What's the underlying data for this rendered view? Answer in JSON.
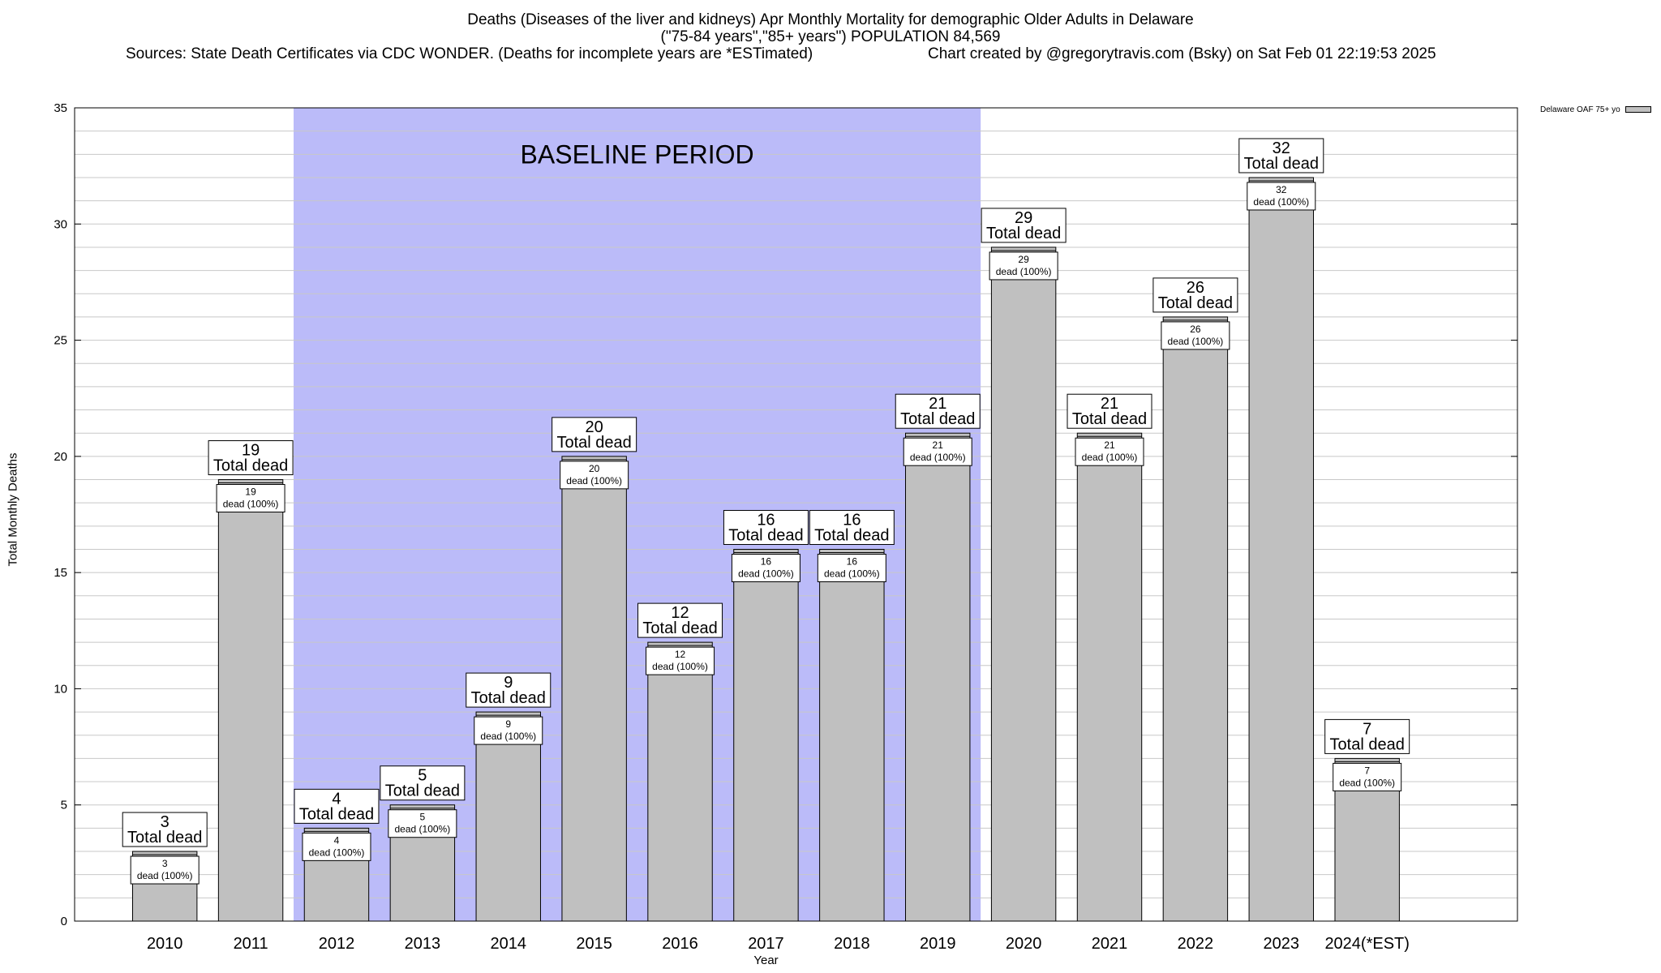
{
  "header": {
    "title_line1": "Deaths (Diseases of the liver and kidneys) Apr Monthly Mortality for demographic Older Adults in Delaware",
    "title_line2": "(\"75-84 years\",\"85+ years\") POPULATION 84,569",
    "sources": "Sources: State Death Certificates via CDC WONDER. (Deaths for incomplete years are *ESTimated)",
    "credit": "Chart created by @gregorytravis.com (Bsky) on Sat Feb 01 22:19:53 2025"
  },
  "chart_data": {
    "type": "bar",
    "xlabel": "Year",
    "ylabel": "Total Monthly Deaths",
    "ylim": [
      0,
      35
    ],
    "y_ticks": [
      0,
      5,
      10,
      15,
      20,
      25,
      30,
      35
    ],
    "grid": true,
    "legend": {
      "label": "Delaware OAF 75+ yo",
      "placement": "top-right"
    },
    "categories": [
      "2010",
      "2011",
      "2012",
      "2013",
      "2014",
      "2015",
      "2016",
      "2017",
      "2018",
      "2019",
      "2020",
      "2021",
      "2022",
      "2023",
      "2024(*EST)"
    ],
    "series": [
      {
        "name": "Delaware OAF 75+ yo",
        "values": [
          3,
          19,
          4,
          5,
          9,
          20,
          12,
          16,
          16,
          21,
          29,
          21,
          26,
          32,
          7
        ]
      }
    ],
    "total_label": "Total dead",
    "inner_label": "dead (100%)",
    "baseline": {
      "label": "BASELINE PERIOD",
      "from": "2012",
      "to": "2019"
    },
    "colors": {
      "bar": "#c0c0c0",
      "baseline": "#bbbbf9",
      "grid": "#c8c8c8"
    }
  }
}
